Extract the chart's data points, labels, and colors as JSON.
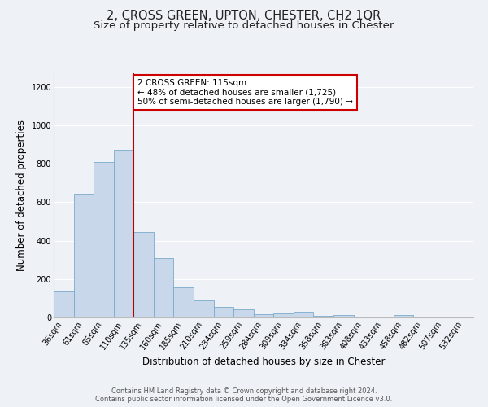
{
  "title": "2, CROSS GREEN, UPTON, CHESTER, CH2 1QR",
  "subtitle": "Size of property relative to detached houses in Chester",
  "xlabel": "Distribution of detached houses by size in Chester",
  "ylabel": "Number of detached properties",
  "bar_labels": [
    "36sqm",
    "61sqm",
    "85sqm",
    "110sqm",
    "135sqm",
    "160sqm",
    "185sqm",
    "210sqm",
    "234sqm",
    "259sqm",
    "284sqm",
    "309sqm",
    "334sqm",
    "358sqm",
    "383sqm",
    "408sqm",
    "433sqm",
    "458sqm",
    "482sqm",
    "507sqm",
    "532sqm"
  ],
  "bar_values": [
    135,
    645,
    810,
    870,
    445,
    310,
    158,
    90,
    55,
    42,
    15,
    22,
    30,
    10,
    12,
    0,
    0,
    12,
    0,
    0,
    5
  ],
  "bar_color": "#c8d8ea",
  "bar_edge_color": "#7aaaca",
  "bar_width": 1.0,
  "vline_x": 3.5,
  "vline_color": "#bb0000",
  "annotation_text": "2 CROSS GREEN: 115sqm\n← 48% of detached houses are smaller (1,725)\n50% of semi-detached houses are larger (1,790) →",
  "annotation_box_color": "#ffffff",
  "annotation_box_edge": "#cc0000",
  "ylim": [
    0,
    1270
  ],
  "yticks": [
    0,
    200,
    400,
    600,
    800,
    1000,
    1200
  ],
  "footer1": "Contains HM Land Registry data © Crown copyright and database right 2024.",
  "footer2": "Contains public sector information licensed under the Open Government Licence v3.0.",
  "bg_color": "#eef2f7",
  "plot_bg_color": "#eef2f7",
  "grid_color": "#ffffff",
  "title_fontsize": 10.5,
  "subtitle_fontsize": 9.5,
  "axis_label_fontsize": 8.5,
  "tick_fontsize": 7,
  "footer_fontsize": 6,
  "annot_fontsize": 7.5
}
